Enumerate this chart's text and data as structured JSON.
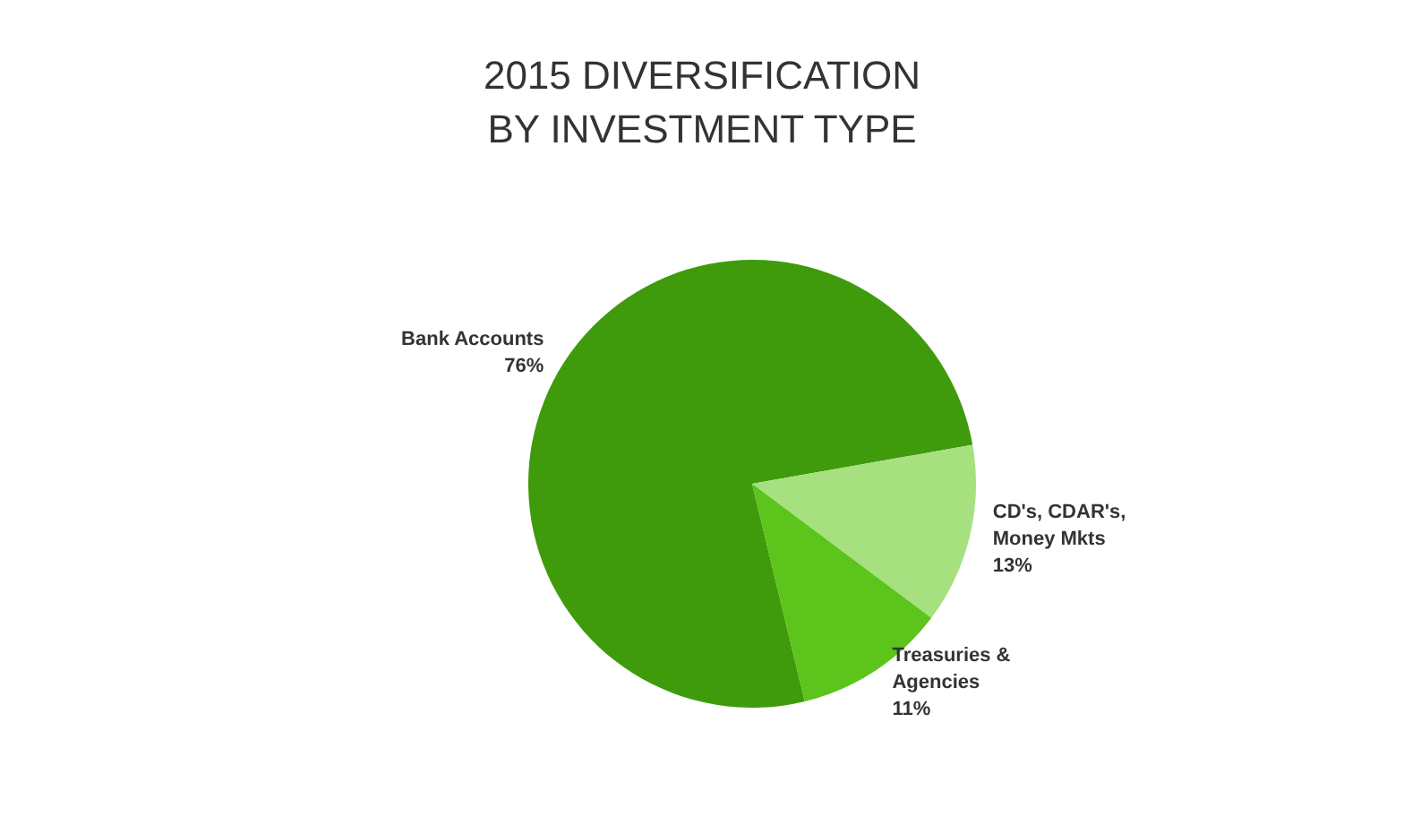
{
  "chart_data": {
    "type": "pie",
    "title": "2015 DIVERSIFICATION\nBY INVESTMENT TYPE",
    "categories": [
      "Bank Accounts",
      "CD's, CDAR's, Money Mkts",
      "Treasuries & Agencies"
    ],
    "values": [
      76,
      13,
      11
    ],
    "value_labels": [
      "76%",
      "13%",
      "11%"
    ],
    "colors": [
      "#3f9b0b",
      "#a6e07f",
      "#5cc41a"
    ],
    "legend": false
  }
}
